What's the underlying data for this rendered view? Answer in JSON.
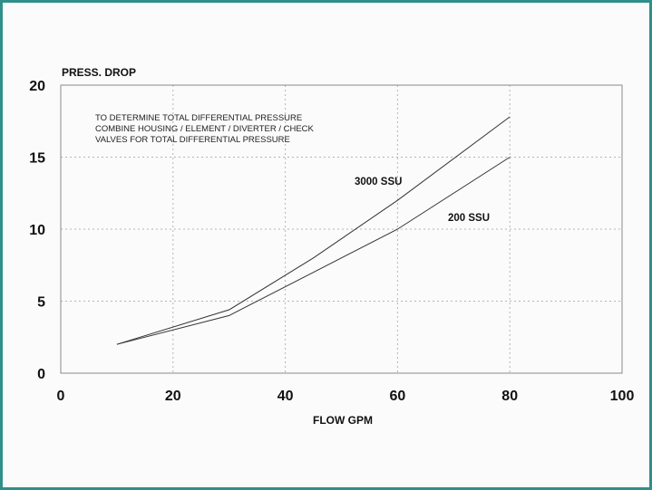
{
  "colors": {
    "frame": "#2f8f8a",
    "line": "#333333",
    "grid": "#b5b5b5"
  },
  "chart_data": {
    "type": "line",
    "ylabel": "PRESS. DROP",
    "xlabel": "FLOW GPM",
    "xlim": [
      0,
      100
    ],
    "ylim": [
      0,
      20
    ],
    "x_ticks": [
      0,
      20,
      40,
      60,
      80,
      100
    ],
    "y_ticks": [
      0,
      5,
      10,
      15,
      20
    ],
    "grid": true,
    "annotations": [
      "TO DETERMINE TOTAL DIFFERENTIAL PRESSURE",
      "COMBINE HOUSING / ELEMENT / DIVERTER / CHECK",
      "VALVES FOR TOTAL DIFFERENTIAL PRESSURE"
    ],
    "series": [
      {
        "name": "3000 SSU",
        "x": [
          10,
          30,
          45,
          60,
          80
        ],
        "y": [
          2.0,
          4.4,
          8.0,
          12.0,
          17.8
        ]
      },
      {
        "name": "200 SSU",
        "x": [
          10,
          30,
          45,
          60,
          80
        ],
        "y": [
          2.0,
          4.0,
          7.0,
          10.0,
          15.0
        ]
      }
    ]
  }
}
